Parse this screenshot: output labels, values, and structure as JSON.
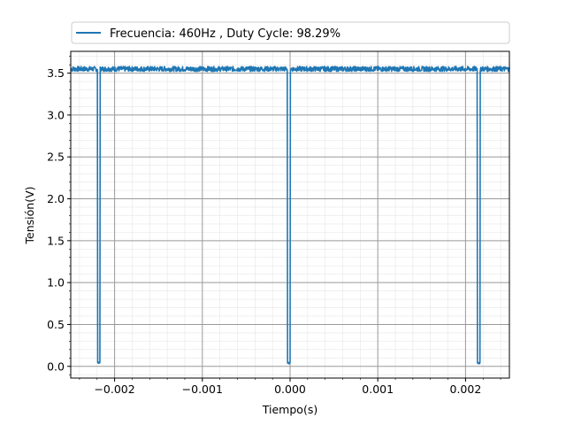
{
  "chart_data": {
    "type": "line",
    "xlabel": "Tiempo(s)",
    "ylabel": "Tensión(V)",
    "xlim": [
      -0.0025,
      0.0025
    ],
    "ylim": [
      -0.14,
      3.76
    ],
    "grid": {
      "major": true,
      "minor": true
    },
    "legend_position": "top, outside plot, spanning width",
    "x_ticks": [
      {
        "value": -0.002,
        "label": "−0.002"
      },
      {
        "value": -0.001,
        "label": "−0.001"
      },
      {
        "value": 0.0,
        "label": "0.000"
      },
      {
        "value": 0.001,
        "label": "0.001"
      },
      {
        "value": 0.002,
        "label": "0.002"
      }
    ],
    "y_ticks": [
      {
        "value": 0.0,
        "label": "0.0"
      },
      {
        "value": 0.5,
        "label": "0.5"
      },
      {
        "value": 1.0,
        "label": "1.0"
      },
      {
        "value": 1.5,
        "label": "1.5"
      },
      {
        "value": 2.0,
        "label": "2.0"
      },
      {
        "value": 2.5,
        "label": "2.5"
      },
      {
        "value": 3.0,
        "label": "3.0"
      },
      {
        "value": 3.5,
        "label": "3.5"
      }
    ],
    "series": [
      {
        "name": "Frecuencia: 460Hz , Duty Cycle: 98.29%",
        "color": "#1f77b4",
        "high_level": 3.55,
        "low_level": 0.04,
        "pulses_low": [
          {
            "start": -0.002195,
            "end": -0.002165
          },
          {
            "start": -3e-05,
            "end": 0.0
          },
          {
            "start": 0.002135,
            "end": 0.002165
          }
        ]
      }
    ]
  }
}
